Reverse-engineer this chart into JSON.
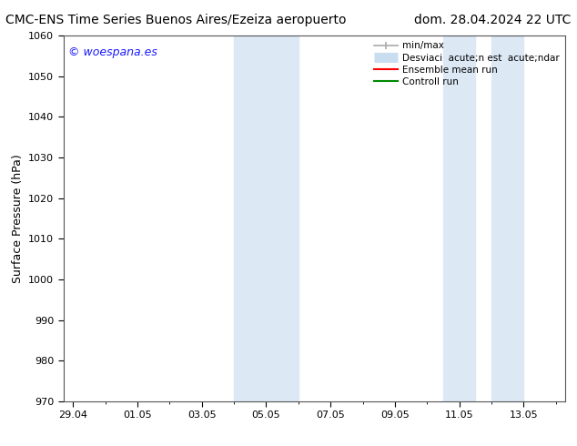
{
  "title_left": "CMC-ENS Time Series Buenos Aires/Ezeiza aeropuerto",
  "title_right": "dom. 28.04.2024 22 UTC",
  "ylabel": "Surface Pressure (hPa)",
  "ylim": [
    970,
    1060
  ],
  "yticks": [
    970,
    980,
    990,
    1000,
    1010,
    1020,
    1030,
    1040,
    1050,
    1060
  ],
  "xtick_labels": [
    "29.04",
    "01.05",
    "03.05",
    "05.05",
    "07.05",
    "09.05",
    "11.05",
    "13.05"
  ],
  "xtick_positions": [
    0,
    2,
    4,
    6,
    8,
    10,
    12,
    14
  ],
  "xmin": -0.3,
  "xmax": 15.3,
  "shaded_bands": [
    {
      "xstart": 5.0,
      "xend": 7.0
    },
    {
      "xstart": 11.5,
      "xend": 12.5
    },
    {
      "xstart": 13.0,
      "xend": 14.0
    }
  ],
  "shade_color": "#dce9f5",
  "background_color": "#ffffff",
  "watermark_text": "© woespana.es",
  "watermark_color": "#1a1aff",
  "legend_label_minmax": "min/max",
  "legend_label_desv": "Desviaci  acute;n est  acute;ndar",
  "legend_label_ens": "Ensemble mean run",
  "legend_label_ctrl": "Controll run",
  "legend_color_minmax": "#aaaaaa",
  "legend_color_desv": "#c8ddf0",
  "legend_color_ens": "#ff0000",
  "legend_color_ctrl": "#008800",
  "title_fontsize": 10,
  "tick_fontsize": 8,
  "ylabel_fontsize": 9,
  "watermark_fontsize": 9,
  "legend_fontsize": 7.5
}
